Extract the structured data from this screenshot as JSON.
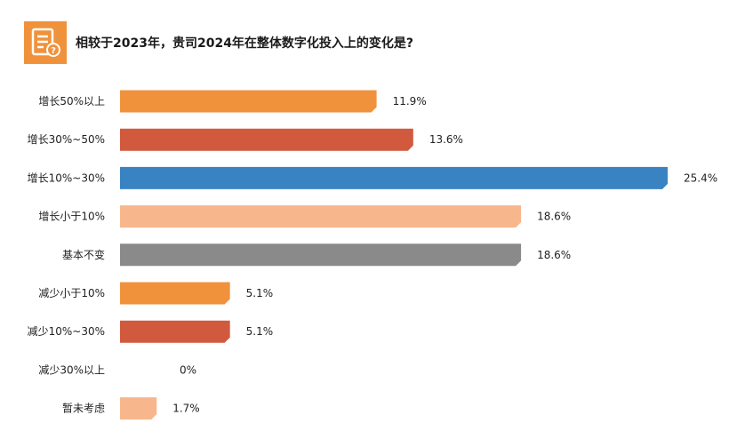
{
  "header": {
    "icon": "survey-question-icon",
    "title": "相较于2023年，贵司2024年在整体数字化投入上的变化是?"
  },
  "chart_data": {
    "type": "bar",
    "orientation": "horizontal",
    "title": "相较于2023年，贵司2024年在整体数字化投入上的变化是?",
    "categories": [
      "增长50%以上",
      "增长30%~50%",
      "增长10%~30%",
      "增长小于10%",
      "基本不变",
      "减少小于10%",
      "减少10%~30%",
      "减少30%以上",
      "暂未考虑"
    ],
    "values": [
      11.9,
      13.6,
      25.4,
      18.6,
      18.6,
      5.1,
      5.1,
      0,
      1.7
    ],
    "value_labels": [
      "11.9%",
      "13.6%",
      "25.4%",
      "18.6%",
      "18.6%",
      "5.1%",
      "5.1%",
      "0%",
      "1.7%"
    ],
    "colors": [
      "#f0923c",
      "#d15a3e",
      "#3a83c3",
      "#f8b68c",
      "#8a8a8a",
      "#f0923c",
      "#d15a3e",
      "#f0923c",
      "#f8b68c"
    ],
    "xlim": [
      0,
      25.4
    ],
    "grid": false,
    "legend": "none"
  }
}
